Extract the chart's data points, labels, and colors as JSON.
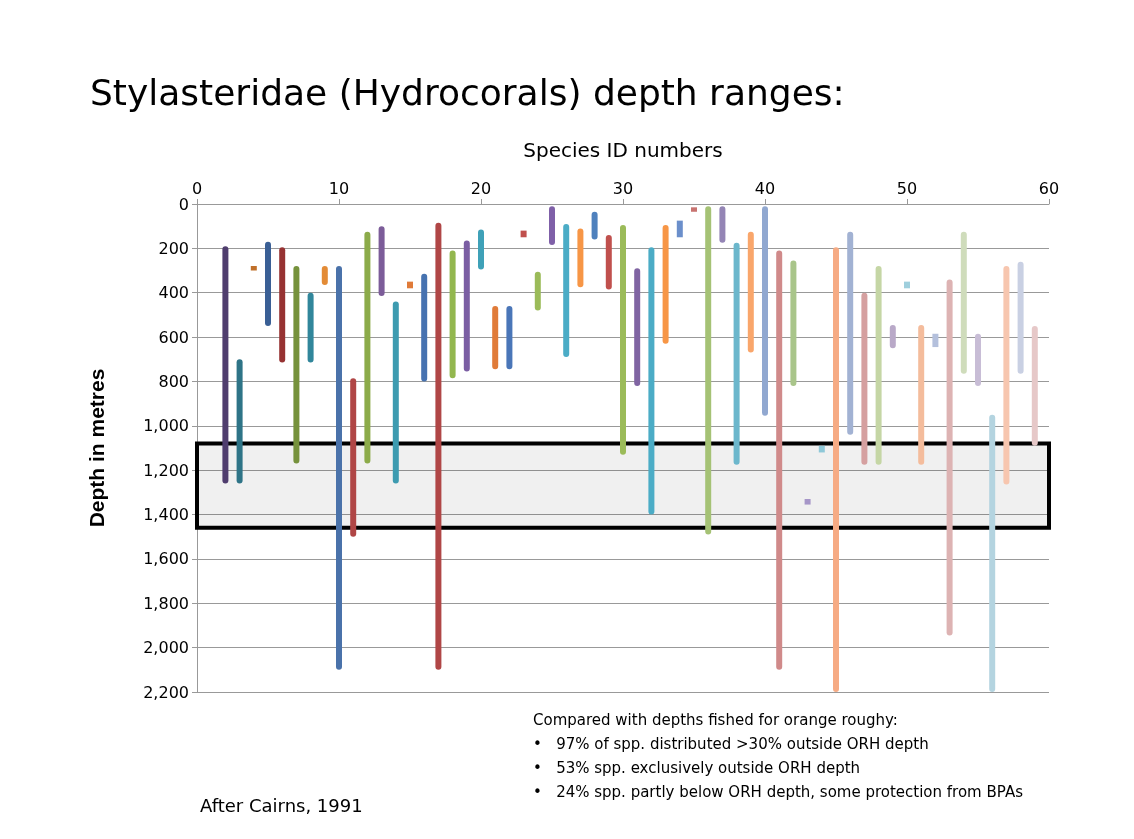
{
  "chart_data": {
    "type": "bar",
    "title": "Stylasteridae (Hydrocorals) depth ranges:",
    "xlabel": "Species ID numbers",
    "ylabel": "Depth in metres",
    "x": [
      2,
      3,
      4,
      5,
      6,
      7,
      8,
      9,
      10,
      11,
      12,
      13,
      14,
      15,
      16,
      17,
      18,
      19,
      20,
      21,
      22,
      23,
      24,
      25,
      26,
      27,
      28,
      29,
      30,
      31,
      32,
      33,
      34,
      35,
      36,
      37,
      38,
      39,
      40,
      41,
      42,
      43,
      44,
      45,
      46,
      47,
      48,
      49,
      50,
      51,
      52,
      53,
      54,
      55,
      56,
      57,
      58,
      59
    ],
    "base": [
      190,
      700,
      280,
      170,
      195,
      280,
      400,
      280,
      280,
      785,
      125,
      100,
      440,
      350,
      315,
      85,
      210,
      165,
      115,
      460,
      460,
      120,
      305,
      10,
      90,
      110,
      35,
      140,
      95,
      290,
      195,
      95,
      75,
      15,
      10,
      10,
      175,
      125,
      10,
      210,
      255,
      1330,
      1090,
      195,
      125,
      400,
      280,
      545,
      350,
      545,
      585,
      340,
      125,
      585,
      950,
      280,
      260,
      550
    ],
    "values": [
      1070,
      560,
      20,
      380,
      520,
      890,
      315,
      85,
      1820,
      715,
      1045,
      315,
      820,
      30,
      485,
      2015,
      575,
      590,
      180,
      285,
      285,
      30,
      175,
      175,
      600,
      265,
      125,
      245,
      1035,
      530,
      1205,
      535,
      75,
      20,
      1480,
      165,
      1000,
      545,
      945,
      1890,
      565,
      25,
      30,
      2005,
      915,
      775,
      895,
      105,
      30,
      630,
      60,
      1605,
      640,
      235,
      1250,
      985,
      505,
      540
    ],
    "colors": [
      "#4f3d6e",
      "#2e7487",
      "#c0702a",
      "#3a5f95",
      "#963232",
      "#76923c",
      "#31869b",
      "#e38b36",
      "#4a72aa",
      "#b04646",
      "#8cab4a",
      "#7c5c99",
      "#3d9bb0",
      "#e07b39",
      "#4672b0",
      "#b04646",
      "#93b74f",
      "#7b5ea3",
      "#3fa1b8",
      "#e07b39",
      "#4a76b8",
      "#c0504d",
      "#9bbb59",
      "#7f60a8",
      "#4bacc6",
      "#f79646",
      "#4f81bd",
      "#c0504d",
      "#9bbb59",
      "#8064a2",
      "#4bacc6",
      "#f79646",
      "#6b8fcb",
      "#c87370",
      "#a5c275",
      "#9485b5",
      "#6cb7cc",
      "#f9a66b",
      "#91a8d0",
      "#d08a8a",
      "#a9c58a",
      "#a696c8",
      "#8ec8d8",
      "#f6ab84",
      "#a2b2d3",
      "#d5a0a0",
      "#c5d6a5",
      "#b9a9c8",
      "#9fcfdd",
      "#f4bc9c",
      "#b4c0dc",
      "#ddb3b3",
      "#cfdcbb",
      "#c8bdd6",
      "#b4d4e0",
      "#f7c6af",
      "#c9d0e3",
      "#e6c8c8"
    ],
    "xlim": [
      0,
      60
    ],
    "xticks": [
      0,
      10,
      20,
      30,
      40,
      50,
      60
    ],
    "ylim": [
      2200,
      0
    ],
    "yticks": [
      0,
      200,
      400,
      600,
      800,
      {
        "value": 1000,
        "label": "1,000"
      },
      {
        "value": 1200,
        "label": "1,200"
      },
      {
        "value": 1400,
        "label": "1,400"
      },
      {
        "value": 1600,
        "label": "1,600"
      },
      {
        "value": 1800,
        "label": "1,800"
      },
      {
        "value": 2000,
        "label": "2,000"
      },
      {
        "value": 2200,
        "label": "2,200"
      }
    ],
    "grid": "y",
    "bands": [
      {
        "axis": "y",
        "from": 1080,
        "to": 1460,
        "label": null,
        "color": "#000000"
      }
    ],
    "annotations": [
      "After Cairns, 1991",
      "Compared with depths fished for orange roughy:",
      "•   97% of spp. distributed >30% outside ORH depth",
      "•   53% spp. exclusively outside ORH depth",
      "•   24% spp. partly below ORH depth, some protection from BPAs"
    ]
  }
}
